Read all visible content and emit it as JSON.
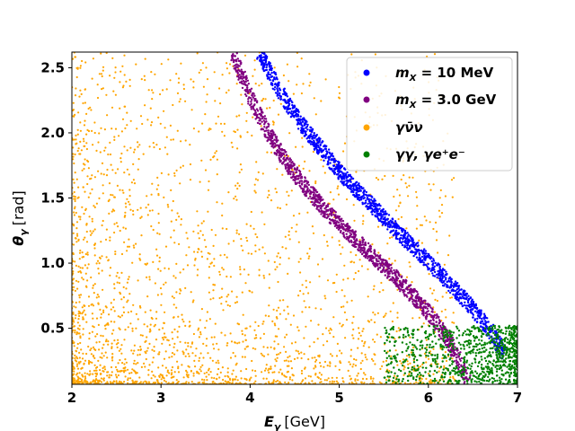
{
  "chart_data": {
    "type": "scatter",
    "title": "",
    "xlabel": {
      "symbol": "E",
      "sub": "γ",
      "unit": "[GeV]"
    },
    "ylabel": {
      "symbol": "θ",
      "sub": "γ",
      "unit": "[rad]"
    },
    "xlim": [
      2.0,
      7.0
    ],
    "ylim": [
      0.07,
      2.62
    ],
    "xticks": [
      2,
      3,
      4,
      5,
      6,
      7
    ],
    "yticks": [
      0.5,
      1.0,
      1.5,
      2.0,
      2.5
    ],
    "xtick_labels": [
      "2",
      "3",
      "4",
      "5",
      "6",
      "7"
    ],
    "ytick_labels": [
      "0.5",
      "1.0",
      "1.5",
      "2.0",
      "2.5"
    ],
    "grid": false,
    "legend_position": "top-right",
    "series": [
      {
        "name": "m_X = 10 MeV",
        "label_parts": {
          "var": "m",
          "sub": "X",
          "rest": " = 10 MeV"
        },
        "color": "#0000ff",
        "kind": "band",
        "x": [
          4.1,
          4.3,
          4.5,
          4.7,
          4.9,
          5.1,
          5.3,
          5.5,
          5.7,
          5.9,
          6.1,
          6.3,
          6.5,
          6.7,
          6.85
        ],
        "y": [
          2.62,
          2.36,
          2.14,
          1.96,
          1.79,
          1.63,
          1.49,
          1.35,
          1.21,
          1.08,
          0.94,
          0.8,
          0.65,
          0.48,
          0.3
        ],
        "thickness": 0.1
      },
      {
        "name": "m_X = 3.0 GeV",
        "label_parts": {
          "var": "m",
          "sub": "X",
          "rest": " = 3.0 GeV"
        },
        "color": "#800080",
        "kind": "band",
        "x": [
          3.8,
          4.0,
          4.2,
          4.4,
          4.6,
          4.8,
          5.0,
          5.2,
          5.4,
          5.6,
          5.8,
          6.0,
          6.2,
          6.35,
          6.45
        ],
        "y": [
          2.62,
          2.28,
          2.0,
          1.78,
          1.6,
          1.44,
          1.3,
          1.17,
          1.04,
          0.91,
          0.77,
          0.62,
          0.44,
          0.25,
          0.08
        ],
        "thickness": 0.1
      },
      {
        "name": "γν̄ν",
        "label_parts": {
          "text": "γν̄ν"
        },
        "color": "#ffa500",
        "kind": "scatter-cloud",
        "x_range": [
          2.0,
          6.3
        ],
        "y_range": [
          0.07,
          2.62
        ],
        "density": "dense near low E and low θ"
      },
      {
        "name": "γγ, γe⁺e⁻",
        "label_parts": {
          "text": "γγ, γe⁺e⁻"
        },
        "color": "#008000",
        "kind": "scatter-cloud",
        "x_range": [
          5.5,
          7.0
        ],
        "y_range": [
          0.07,
          0.52
        ],
        "density": "dense near E = 7"
      }
    ]
  }
}
